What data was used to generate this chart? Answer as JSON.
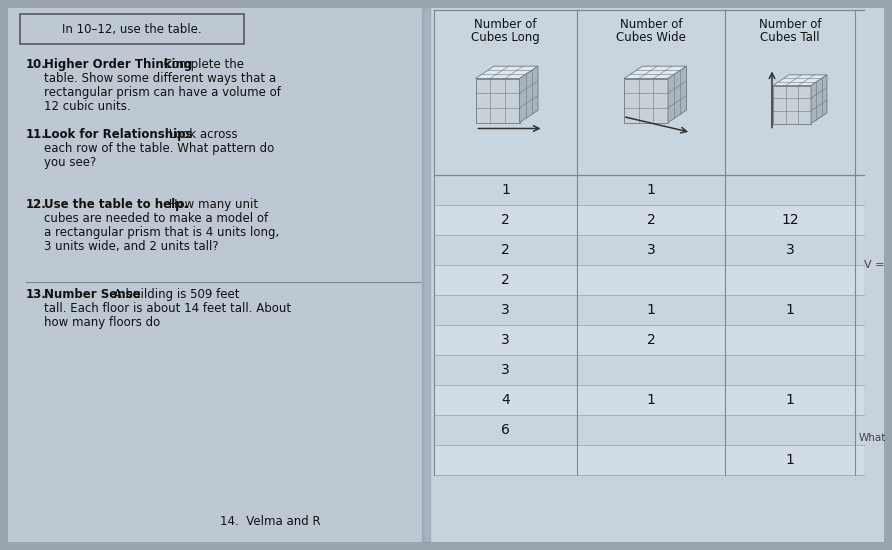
{
  "bg_color": "#9aa5b0",
  "page_left_color": "#bec8d2",
  "page_right_color": "#c8d2dc",
  "title_box_text": "In 10–12, use the table.",
  "col1_header_line1": "Number of",
  "col1_header_line2": "Cubes Long",
  "col2_header_line1": "Number of",
  "col2_header_line2": "Cubes Wide",
  "col3_header_line1": "Number of",
  "col3_header_line2": "Cubes Tall",
  "table_rows": [
    [
      "1",
      "1",
      ""
    ],
    [
      "2",
      "2",
      "12"
    ],
    [
      "2",
      "3",
      "3"
    ],
    [
      "2",
      "",
      ""
    ],
    [
      "3",
      "1",
      "1"
    ],
    [
      "3",
      "2",
      ""
    ],
    [
      "3",
      "",
      ""
    ],
    [
      "4",
      "1",
      "1"
    ],
    [
      "6",
      "",
      ""
    ],
    [
      "",
      "",
      "1"
    ]
  ],
  "q10_num": "10.",
  "q10_bold": "Higher Order Thinking",
  "q10_rest_line1": " Complete the",
  "q10_rest_line2": "table. Show some different ways that a",
  "q10_rest_line3": "rectangular prism can have a volume of",
  "q10_rest_line4": "12 cubic units.",
  "q11_num": "11.",
  "q11_bold": "Look for Relationships",
  "q11_rest_line1": " Look across",
  "q11_rest_line2": "each row of the table. What pattern do",
  "q11_rest_line3": "you see?",
  "q12_num": "12.",
  "q12_bold": "Use the table to help.",
  "q12_rest_line1": " How many unit",
  "q12_rest_line2": "cubes are needed to make a model of",
  "q12_rest_line3": "a rectangular prism that is 4 units long,",
  "q12_rest_line4": "3 units wide, and 2 units tall?",
  "q13_num": "13.",
  "q13_bold": "Number Sense",
  "q13_rest_line1": " A building is 509 feet",
  "q13_rest_line2": "tall. Each floor is about 14 feet tall. About",
  "q13_rest_line3": "how many floors do",
  "q14_text": "14.  Velma and R",
  "side_note_what": "What",
  "side_note_v": "V ="
}
